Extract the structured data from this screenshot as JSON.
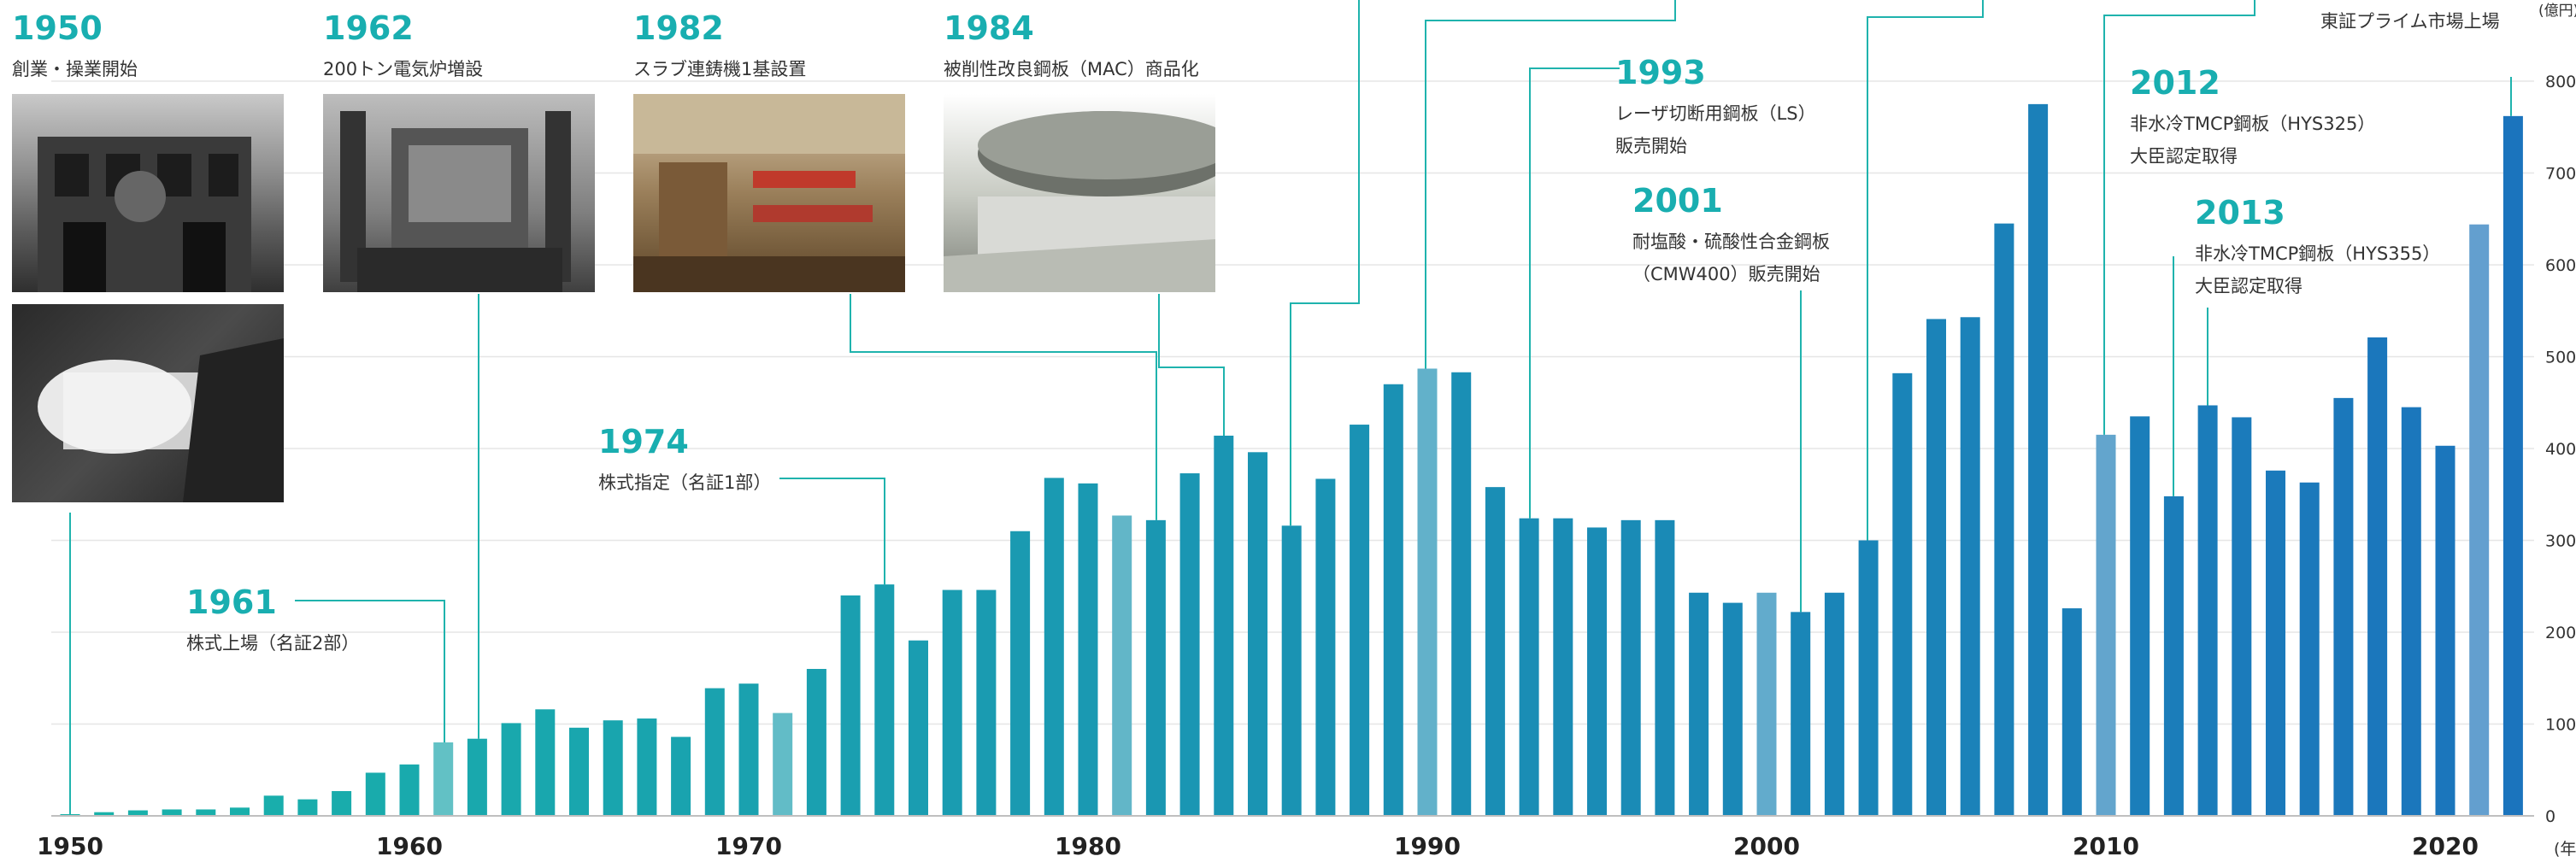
{
  "chart_data": {
    "type": "bar",
    "x_unit_label": "(年)",
    "y_unit_label": "(億円)",
    "ylim": [
      0,
      800
    ],
    "y_ticks": [
      0,
      100,
      200,
      300,
      400,
      500,
      600,
      700,
      800
    ],
    "x_ticks": [
      1950,
      1960,
      1970,
      1980,
      1990,
      2000,
      2010,
      2020
    ],
    "grid": true,
    "years": [
      1950,
      1951,
      1952,
      1953,
      1954,
      1955,
      1956,
      1957,
      1958,
      1959,
      1960,
      1961,
      1962,
      1963,
      1964,
      1965,
      1966,
      1967,
      1968,
      1969,
      1970,
      1971,
      1972,
      1973,
      1974,
      1975,
      1976,
      1977,
      1978,
      1979,
      1980,
      1981,
      1982,
      1983,
      1984,
      1985,
      1986,
      1987,
      1988,
      1989,
      1990,
      1991,
      1992,
      1993,
      1994,
      1995,
      1996,
      1997,
      1998,
      1999,
      2000,
      2001,
      2002,
      2003,
      2004,
      2005,
      2006,
      2007,
      2008,
      2009,
      2010,
      2011,
      2012,
      2013,
      2014,
      2015,
      2016,
      2017,
      2018,
      2019,
      2020,
      2021,
      2022,
      2023
    ],
    "values": [
      1,
      4,
      6,
      7,
      7,
      9,
      22,
      18,
      27,
      47,
      56,
      80,
      84,
      101,
      116,
      96,
      104,
      106,
      86,
      139,
      144,
      112,
      160,
      240,
      252,
      191,
      246,
      246,
      310,
      368,
      362,
      327,
      322,
      373,
      414,
      396,
      316,
      367,
      426,
      470,
      487,
      483,
      358,
      324,
      324,
      314,
      322,
      322,
      243,
      232,
      243,
      222,
      243,
      300,
      482,
      541,
      543,
      645,
      775,
      226,
      415,
      435,
      348,
      447,
      434,
      376,
      363,
      455,
      521,
      445,
      403,
      644,
      762,
      0
    ],
    "highlight_years": [
      1961,
      1971,
      1981,
      1990,
      2000,
      2010,
      2021
    ],
    "colors": {
      "start": "#19b3aa",
      "end": "#1b73bd",
      "highlight_mix": "#e8eef2"
    },
    "events": [
      {
        "year": "1950",
        "lines": [
          "創業・操業開始"
        ],
        "bar_year": 1950
      },
      {
        "year": "1962",
        "lines": [
          "200トン電気炉増設"
        ],
        "bar_year": 1962
      },
      {
        "year": "1982",
        "lines": [
          "スラブ連鋳機1基設置"
        ],
        "bar_year": 1982
      },
      {
        "year": "1984",
        "lines": [
          "被削性改良鋼板（MAC）商品化"
        ],
        "bar_year": 1984
      },
      {
        "year": "1974",
        "lines": [
          "株式指定（名証1部）"
        ],
        "bar_year": 1974
      },
      {
        "year": "1961",
        "lines": [
          "株式上場（名証2部）"
        ],
        "bar_year": 1961
      },
      {
        "year": "1993",
        "lines": [
          "レーザ切断用鋼板（LS）",
          "販売開始"
        ],
        "bar_year": 1993
      },
      {
        "year": "2001",
        "lines": [
          "耐塩酸・硫酸性合金鋼板",
          "（CMW400）販売開始"
        ],
        "bar_year": 2001
      },
      {
        "year": "2012",
        "lines": [
          "非水冷TMCP鋼板（HYS325）",
          "大臣認定取得"
        ],
        "bar_year": 2012
      },
      {
        "year": "2013",
        "lines": [
          "非水冷TMCP鋼板（HYS355）",
          "大臣認定取得"
        ],
        "bar_year": 2013
      },
      {
        "year": "",
        "lines": [
          "東証プライム市場上場"
        ],
        "bar_year": 2022
      }
    ],
    "offscreen_leaders": [
      1986,
      1990,
      2003,
      2010
    ]
  }
}
